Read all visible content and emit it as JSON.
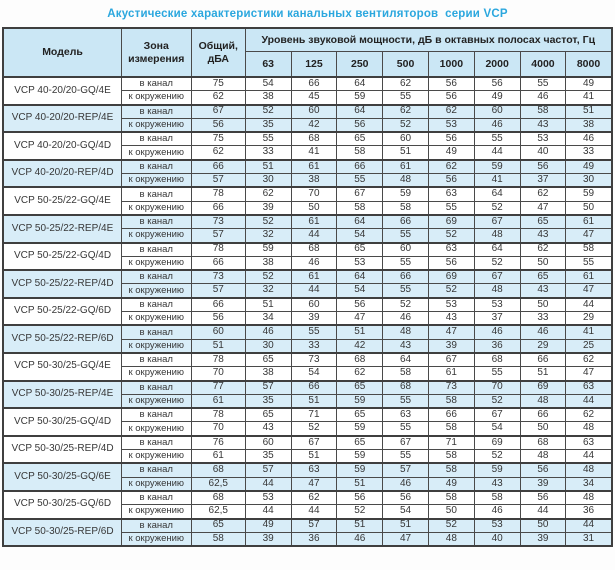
{
  "title": "Акустические характеристики канальных вентиляторов  серии VCP",
  "colors": {
    "title_blue": "#2ba7de",
    "header_bg": "#cbe7f5",
    "highlight_row_bg": "#d8edf8",
    "border": "#4a4a4a",
    "text": "#373737"
  },
  "table": {
    "headers": {
      "model": "Модель",
      "zone": "Зона измерения",
      "total": "Общий, дБА",
      "octave": "Уровень звуковой мощности, дБ в октавных полосах частот, Гц",
      "frequencies": [
        "63",
        "125",
        "250",
        "500",
        "1000",
        "2000",
        "4000",
        "8000"
      ]
    },
    "zone_labels": [
      "в канал",
      "к окружению"
    ],
    "rows": [
      {
        "model": "VCP 40-20/20-GQ/4E",
        "highlight": false,
        "duct": [
          "75",
          "54",
          "66",
          "64",
          "62",
          "56",
          "56",
          "55",
          "49"
        ],
        "ambient": [
          "62",
          "38",
          "45",
          "59",
          "55",
          "56",
          "49",
          "46",
          "41"
        ]
      },
      {
        "model": "VCP 40-20/20-REP/4E",
        "highlight": true,
        "duct": [
          "67",
          "52",
          "60",
          "64",
          "62",
          "62",
          "60",
          "58",
          "51"
        ],
        "ambient": [
          "56",
          "35",
          "42",
          "56",
          "52",
          "53",
          "46",
          "43",
          "38"
        ]
      },
      {
        "model": "VCP 40-20/20-GQ/4D",
        "highlight": false,
        "duct": [
          "75",
          "55",
          "68",
          "65",
          "60",
          "56",
          "55",
          "53",
          "46"
        ],
        "ambient": [
          "62",
          "33",
          "41",
          "58",
          "51",
          "49",
          "44",
          "40",
          "33"
        ]
      },
      {
        "model": "VCP 40-20/20-REP/4D",
        "highlight": true,
        "duct": [
          "66",
          "51",
          "61",
          "66",
          "61",
          "62",
          "59",
          "56",
          "49"
        ],
        "ambient": [
          "57",
          "30",
          "38",
          "55",
          "48",
          "56",
          "41",
          "37",
          "30"
        ]
      },
      {
        "model": "VCP 50-25/22-GQ/4E",
        "highlight": false,
        "duct": [
          "78",
          "62",
          "70",
          "67",
          "59",
          "63",
          "64",
          "62",
          "59"
        ],
        "ambient": [
          "66",
          "39",
          "50",
          "58",
          "58",
          "55",
          "52",
          "47",
          "50"
        ]
      },
      {
        "model": "VCP 50-25/22-REP/4E",
        "highlight": true,
        "duct": [
          "73",
          "52",
          "61",
          "64",
          "66",
          "69",
          "67",
          "65",
          "61"
        ],
        "ambient": [
          "57",
          "32",
          "44",
          "54",
          "55",
          "52",
          "48",
          "43",
          "47"
        ]
      },
      {
        "model": "VCP 50-25/22-GQ/4D",
        "highlight": false,
        "duct": [
          "78",
          "59",
          "68",
          "65",
          "60",
          "63",
          "64",
          "62",
          "58"
        ],
        "ambient": [
          "66",
          "38",
          "46",
          "53",
          "55",
          "56",
          "52",
          "50",
          "55"
        ]
      },
      {
        "model": "VCP 50-25/22-REP/4D",
        "highlight": true,
        "duct": [
          "73",
          "52",
          "61",
          "64",
          "66",
          "69",
          "67",
          "65",
          "61"
        ],
        "ambient": [
          "57",
          "32",
          "44",
          "54",
          "55",
          "52",
          "48",
          "43",
          "47"
        ]
      },
      {
        "model": "VCP 50-25/22-GQ/6D",
        "highlight": false,
        "duct": [
          "66",
          "51",
          "60",
          "56",
          "52",
          "53",
          "53",
          "50",
          "44"
        ],
        "ambient": [
          "56",
          "34",
          "39",
          "47",
          "46",
          "43",
          "37",
          "33",
          "29"
        ]
      },
      {
        "model": "VCP 50-25/22-REP/6D",
        "highlight": true,
        "duct": [
          "60",
          "46",
          "55",
          "51",
          "48",
          "47",
          "46",
          "46",
          "41"
        ],
        "ambient": [
          "51",
          "30",
          "33",
          "42",
          "43",
          "39",
          "36",
          "29",
          "25"
        ]
      },
      {
        "model": "VCP 50-30/25-GQ/4E",
        "highlight": false,
        "duct": [
          "78",
          "65",
          "73",
          "68",
          "64",
          "67",
          "68",
          "66",
          "62"
        ],
        "ambient": [
          "70",
          "38",
          "54",
          "62",
          "58",
          "61",
          "55",
          "51",
          "47"
        ]
      },
      {
        "model": "VCP 50-30/25-REP/4E",
        "highlight": true,
        "duct": [
          "77",
          "57",
          "66",
          "65",
          "68",
          "73",
          "70",
          "69",
          "63"
        ],
        "ambient": [
          "61",
          "35",
          "51",
          "59",
          "55",
          "58",
          "52",
          "48",
          "44"
        ]
      },
      {
        "model": "VCP 50-30/25-GQ/4D",
        "highlight": false,
        "duct": [
          "78",
          "65",
          "71",
          "65",
          "63",
          "66",
          "67",
          "66",
          "62"
        ],
        "ambient": [
          "70",
          "43",
          "52",
          "59",
          "55",
          "58",
          "54",
          "50",
          "48"
        ]
      },
      {
        "model": "VCP 50-30/25-REP/4D",
        "highlight": false,
        "duct": [
          "76",
          "60",
          "67",
          "65",
          "67",
          "71",
          "69",
          "68",
          "63"
        ],
        "ambient": [
          "61",
          "35",
          "51",
          "59",
          "55",
          "58",
          "52",
          "48",
          "44"
        ]
      },
      {
        "model": "VCP 50-30/25-GQ/6E",
        "highlight": true,
        "duct": [
          "68",
          "57",
          "63",
          "59",
          "57",
          "58",
          "59",
          "56",
          "48"
        ],
        "ambient": [
          "62,5",
          "44",
          "47",
          "51",
          "46",
          "49",
          "43",
          "39",
          "34"
        ]
      },
      {
        "model": "VCP 50-30/25-GQ/6D",
        "highlight": false,
        "duct": [
          "68",
          "53",
          "62",
          "56",
          "56",
          "58",
          "58",
          "56",
          "48"
        ],
        "ambient": [
          "62,5",
          "44",
          "44",
          "52",
          "54",
          "50",
          "46",
          "44",
          "36"
        ]
      },
      {
        "model": "VCP 50-30/25-REP/6D",
        "highlight": true,
        "duct": [
          "65",
          "49",
          "57",
          "51",
          "51",
          "52",
          "53",
          "50",
          "44"
        ],
        "ambient": [
          "58",
          "39",
          "36",
          "46",
          "47",
          "48",
          "40",
          "39",
          "31"
        ]
      }
    ]
  }
}
